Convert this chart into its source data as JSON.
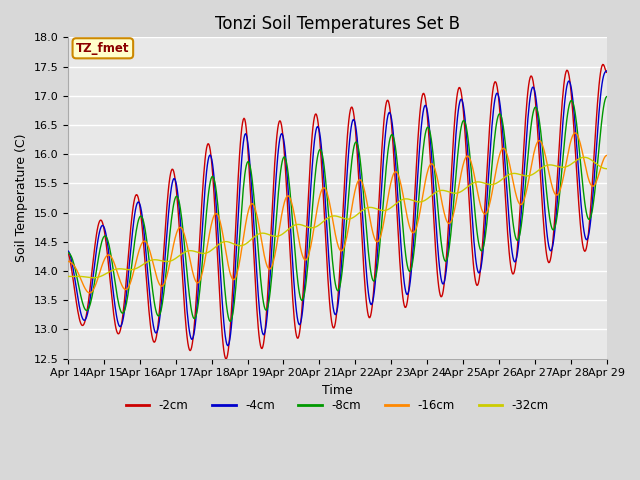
{
  "title": "Tonzi Soil Temperatures Set B",
  "xlabel": "Time",
  "ylabel": "Soil Temperature (C)",
  "ylim": [
    12.5,
    18.0
  ],
  "yticks": [
    12.5,
    13.0,
    13.5,
    14.0,
    14.5,
    15.0,
    15.5,
    16.0,
    16.5,
    17.0,
    17.5,
    18.0
  ],
  "xtick_labels": [
    "Apr 14",
    "Apr 15",
    "Apr 16",
    "Apr 17",
    "Apr 18",
    "Apr 19",
    "Apr 20",
    "Apr 21",
    "Apr 22",
    "Apr 23",
    "Apr 24",
    "Apr 25",
    "Apr 26",
    "Apr 27",
    "Apr 28",
    "Apr 29"
  ],
  "series_colors": [
    "#cc0000",
    "#0000cc",
    "#009900",
    "#ff8800",
    "#cccc00"
  ],
  "series_names": [
    "-2cm",
    "-4cm",
    "-8cm",
    "-16cm",
    "-32cm"
  ],
  "legend_label": "TZ_fmet",
  "background_color": "#e0e0e0",
  "title_fontsize": 12,
  "axis_fontsize": 9,
  "tick_fontsize": 8
}
